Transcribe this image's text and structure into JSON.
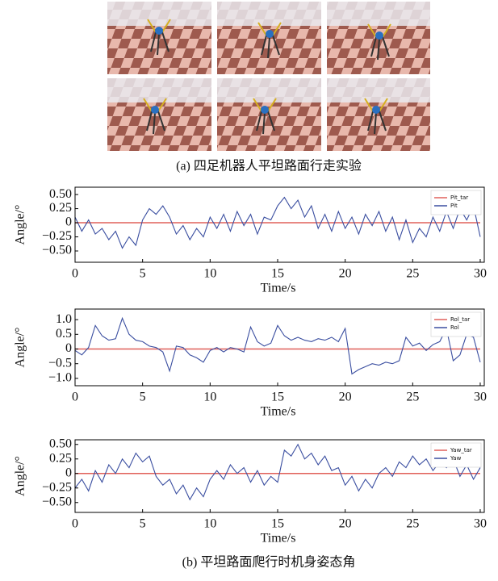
{
  "figure": {
    "caption_a": "(a) 四足机器人平坦路面行走实验",
    "caption_b": "(b) 平坦路面爬行时机身姿态角"
  },
  "chart_data": [
    {
      "type": "line",
      "xlabel": "Time/s",
      "ylabel": "Angle/°",
      "legend": "upper right",
      "x": [
        0,
        0.5,
        1,
        1.5,
        2,
        2.5,
        3,
        3.5,
        4,
        4.5,
        5,
        5.5,
        6,
        6.5,
        7,
        7.5,
        8,
        8.5,
        9,
        9.5,
        10,
        10.5,
        11,
        11.5,
        12,
        12.5,
        13,
        13.5,
        14,
        14.5,
        15,
        15.5,
        16,
        16.5,
        17,
        17.5,
        18,
        18.5,
        19,
        19.5,
        20,
        20.5,
        21,
        21.5,
        22,
        22.5,
        23,
        23.5,
        24,
        24.5,
        25,
        25.5,
        26,
        26.5,
        27,
        27.5,
        28,
        28.5,
        29,
        29.5,
        30
      ],
      "xlim": [
        0,
        30.3
      ],
      "xticks": [
        0,
        5,
        10,
        15,
        20,
        25,
        30
      ],
      "ylim": [
        -0.7,
        0.63
      ],
      "yticks": [
        {
          "value": -0.5,
          "label": "−0.50"
        },
        {
          "value": -0.25,
          "label": "−0.25"
        },
        0,
        {
          "value": 0.25,
          "label": "0.25"
        },
        {
          "value": 0.5,
          "label": "0.50"
        }
      ],
      "series": [
        {
          "name": "Pit_tar",
          "color": "#e0605a",
          "values": [
            0,
            0,
            0,
            0,
            0,
            0,
            0,
            0,
            0,
            0,
            0,
            0,
            0,
            0,
            0,
            0,
            0,
            0,
            0,
            0,
            0,
            0,
            0,
            0,
            0,
            0,
            0,
            0,
            0,
            0,
            0,
            0,
            0,
            0,
            0,
            0,
            0,
            0,
            0,
            0,
            0,
            0,
            0,
            0,
            0,
            0,
            0,
            0,
            0,
            0,
            0,
            0,
            0,
            0,
            0,
            0,
            0,
            0,
            0,
            0,
            0
          ]
        },
        {
          "name": "Pit",
          "color": "#3a4ea0",
          "values": [
            0.1,
            -0.15,
            0.05,
            -0.2,
            -0.1,
            -0.3,
            -0.15,
            -0.45,
            -0.25,
            -0.4,
            0.05,
            0.25,
            0.15,
            0.3,
            0.1,
            -0.2,
            -0.05,
            -0.3,
            -0.1,
            -0.25,
            0.1,
            -0.1,
            0.15,
            -0.15,
            0.2,
            -0.05,
            0.15,
            -0.2,
            0.1,
            0.05,
            0.3,
            0.45,
            0.25,
            0.4,
            0.1,
            0.3,
            -0.1,
            0.15,
            -0.15,
            0.2,
            -0.1,
            0.1,
            -0.2,
            0.15,
            -0.05,
            0.2,
            -0.15,
            0.1,
            -0.3,
            0.05,
            -0.35,
            -0.1,
            -0.25,
            0.1,
            -0.15,
            0.2,
            -0.1,
            0.25,
            0.05,
            0.3,
            -0.25
          ]
        }
      ]
    },
    {
      "type": "line",
      "xlabel": "Time/s",
      "ylabel": "Angle/°",
      "legend": "upper right",
      "x": [
        0,
        0.5,
        1,
        1.5,
        2,
        2.5,
        3,
        3.5,
        4,
        4.5,
        5,
        5.5,
        6,
        6.5,
        7,
        7.5,
        8,
        8.5,
        9,
        9.5,
        10,
        10.5,
        11,
        11.5,
        12,
        12.5,
        13,
        13.5,
        14,
        14.5,
        15,
        15.5,
        16,
        16.5,
        17,
        17.5,
        18,
        18.5,
        19,
        19.5,
        20,
        20.5,
        21,
        21.5,
        22,
        22.5,
        23,
        23.5,
        24,
        24.5,
        25,
        25.5,
        26,
        26.5,
        27,
        27.5,
        28,
        28.5,
        29,
        29.5,
        30
      ],
      "xlim": [
        0,
        30.3
      ],
      "xticks": [
        0,
        5,
        10,
        15,
        20,
        25,
        30
      ],
      "ylim": [
        -1.25,
        1.36
      ],
      "yticks": [
        {
          "value": -1.0,
          "label": "−1.0"
        },
        {
          "value": -0.5,
          "label": "−0.5"
        },
        0,
        {
          "value": 0.5,
          "label": "0.5"
        },
        {
          "value": 1.0,
          "label": "1.0"
        }
      ],
      "series": [
        {
          "name": "Rol_tar",
          "color": "#e0605a",
          "values": [
            0,
            0,
            0,
            0,
            0,
            0,
            0,
            0,
            0,
            0,
            0,
            0,
            0,
            0,
            0,
            0,
            0,
            0,
            0,
            0,
            0,
            0,
            0,
            0,
            0,
            0,
            0,
            0,
            0,
            0,
            0,
            0,
            0,
            0,
            0,
            0,
            0,
            0,
            0,
            0,
            0,
            0,
            0,
            0,
            0,
            0,
            0,
            0,
            0,
            0,
            0,
            0,
            0,
            0,
            0,
            0,
            0,
            0,
            0,
            0,
            0
          ]
        },
        {
          "name": "Rol",
          "color": "#3a4ea0",
          "values": [
            -0.05,
            -0.2,
            0.05,
            0.8,
            0.45,
            0.3,
            0.35,
            1.05,
            0.5,
            0.3,
            0.25,
            0.1,
            0.05,
            -0.1,
            -0.75,
            0.1,
            0.05,
            -0.2,
            -0.3,
            -0.45,
            -0.05,
            0.05,
            -0.1,
            0.05,
            0,
            -0.1,
            0.75,
            0.25,
            0.1,
            0.2,
            0.8,
            0.45,
            0.3,
            0.4,
            0.3,
            0.25,
            0.35,
            0.3,
            0.4,
            0.25,
            0.7,
            -0.85,
            -0.7,
            -0.6,
            -0.5,
            -0.55,
            -0.45,
            -0.5,
            -0.4,
            0.4,
            0.1,
            0.2,
            -0.05,
            0.15,
            0.25,
            0.7,
            -0.4,
            -0.2,
            0.5,
            0.4,
            -0.45
          ]
        }
      ]
    },
    {
      "type": "line",
      "xlabel": "Time/s",
      "ylabel": "Angle/°",
      "legend": "upper right",
      "x": [
        0,
        0.5,
        1,
        1.5,
        2,
        2.5,
        3,
        3.5,
        4,
        4.5,
        5,
        5.5,
        6,
        6.5,
        7,
        7.5,
        8,
        8.5,
        9,
        9.5,
        10,
        10.5,
        11,
        11.5,
        12,
        12.5,
        13,
        13.5,
        14,
        14.5,
        15,
        15.5,
        16,
        16.5,
        17,
        17.5,
        18,
        18.5,
        19,
        19.5,
        20,
        20.5,
        21,
        21.5,
        22,
        22.5,
        23,
        23.5,
        24,
        24.5,
        25,
        25.5,
        26,
        26.5,
        27,
        27.5,
        28,
        28.5,
        29,
        29.5,
        30
      ],
      "xlim": [
        0,
        30.3
      ],
      "xticks": [
        0,
        5,
        10,
        15,
        20,
        25,
        30
      ],
      "ylim": [
        -0.67,
        0.58
      ],
      "yticks": [
        {
          "value": -0.5,
          "label": "−0.50"
        },
        {
          "value": -0.25,
          "label": "−0.25"
        },
        0,
        {
          "value": 0.25,
          "label": "0.25"
        },
        {
          "value": 0.5,
          "label": "0.50"
        }
      ],
      "series": [
        {
          "name": "Yaw_tar",
          "color": "#e0605a",
          "values": [
            0,
            0,
            0,
            0,
            0,
            0,
            0,
            0,
            0,
            0,
            0,
            0,
            0,
            0,
            0,
            0,
            0,
            0,
            0,
            0,
            0,
            0,
            0,
            0,
            0,
            0,
            0,
            0,
            0,
            0,
            0,
            0,
            0,
            0,
            0,
            0,
            0,
            0,
            0,
            0,
            0,
            0,
            0,
            0,
            0,
            0,
            0,
            0,
            0,
            0,
            0,
            0,
            0,
            0,
            0,
            0,
            0,
            0,
            0,
            0,
            0
          ]
        },
        {
          "name": "Yaw",
          "color": "#3a4ea0",
          "values": [
            -0.25,
            -0.1,
            -0.3,
            0.05,
            -0.15,
            0.15,
            0,
            0.25,
            0.1,
            0.35,
            0.2,
            0.3,
            -0.05,
            -0.2,
            -0.1,
            -0.35,
            -0.2,
            -0.45,
            -0.25,
            -0.4,
            -0.1,
            0.05,
            -0.1,
            0.15,
            0,
            0.1,
            -0.15,
            0.05,
            -0.2,
            -0.05,
            -0.15,
            0.4,
            0.3,
            0.5,
            0.25,
            0.35,
            0.15,
            0.3,
            0.05,
            0.1,
            -0.2,
            -0.05,
            -0.3,
            -0.1,
            -0.25,
            0,
            0.1,
            -0.05,
            0.2,
            0.1,
            0.3,
            0.15,
            0.25,
            0.05,
            0.2,
            0.1,
            0.25,
            -0.05,
            0.15,
            -0.1,
            0.1
          ]
        }
      ]
    }
  ]
}
